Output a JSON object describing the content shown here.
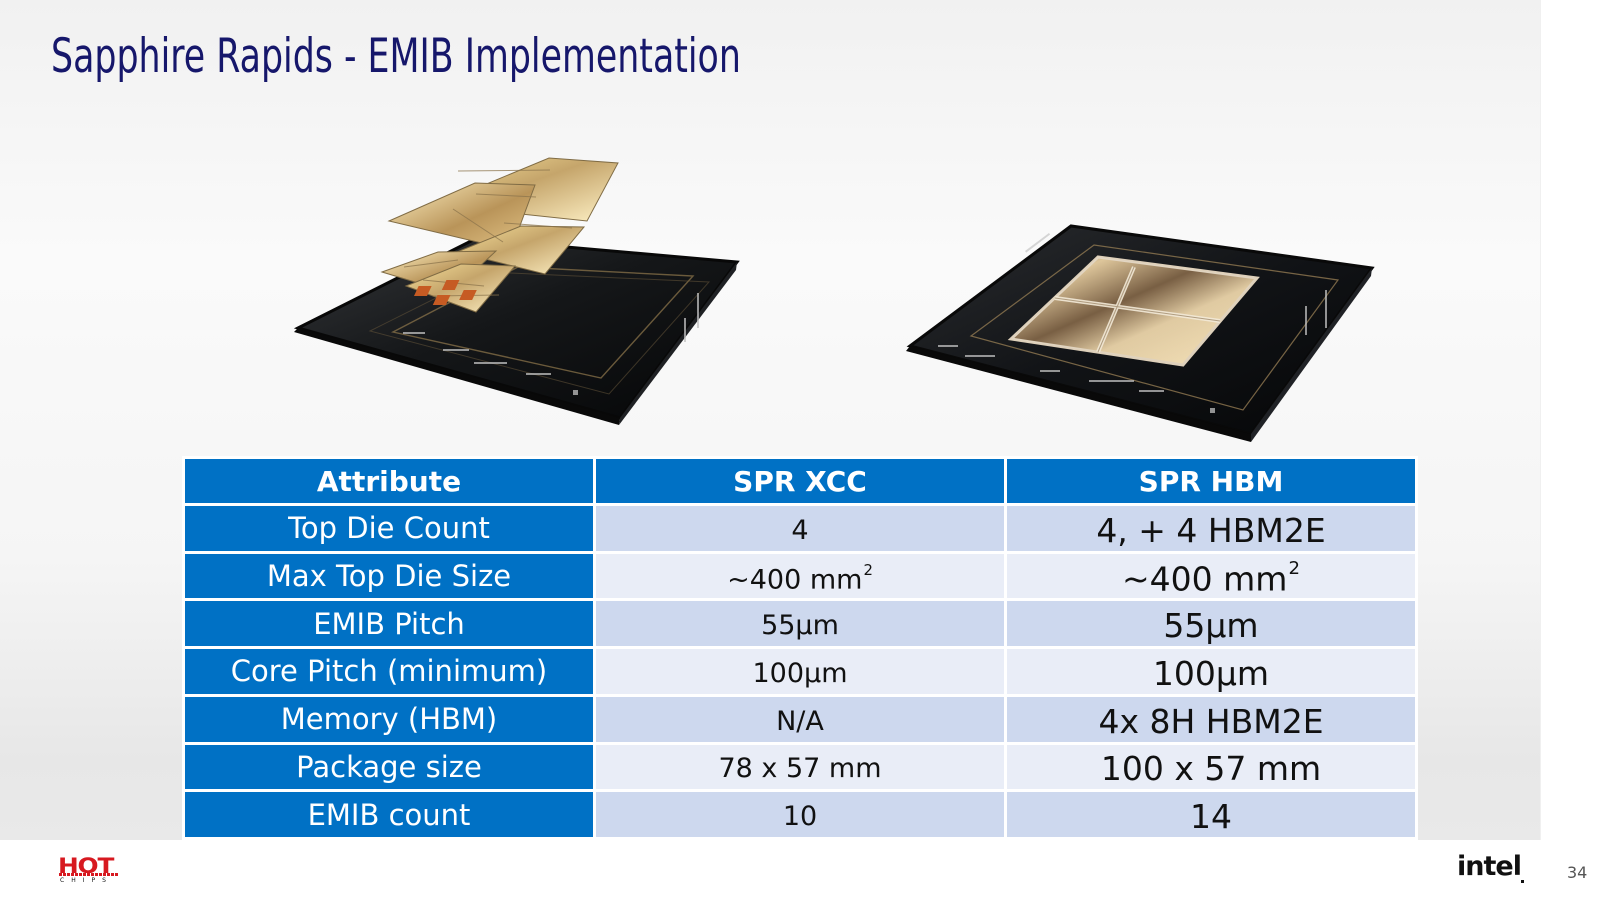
{
  "slide": {
    "title": "Sapphire Rapids - EMIB Implementation",
    "page_number": "34"
  },
  "images": {
    "left": {
      "name": "spr-xcc-package-image"
    },
    "right": {
      "name": "spr-hbm-package-image"
    }
  },
  "table": {
    "headers": [
      "Attribute",
      "SPR XCC",
      "SPR HBM"
    ],
    "rows": [
      {
        "attribute": "Top Die Count",
        "spr_xcc": "4",
        "spr_hbm": "4,  + 4 HBM2E"
      },
      {
        "attribute": "Max Top Die Size",
        "spr_xcc_base": "~400 mm",
        "spr_xcc_superscript": "2",
        "spr_hbm_base": "~400 mm",
        "spr_hbm_superscript": "2"
      },
      {
        "attribute": "EMIB Pitch",
        "spr_xcc": "55µm",
        "spr_hbm": "55µm"
      },
      {
        "attribute": "Core Pitch (minimum)",
        "spr_xcc": "100µm",
        "spr_hbm": "100µm"
      },
      {
        "attribute": "Memory (HBM)",
        "spr_xcc": "N/A",
        "spr_hbm": "4x 8H HBM2E"
      },
      {
        "attribute": "Package size",
        "spr_xcc": "78 x 57 mm",
        "spr_hbm": "100 x 57 mm"
      },
      {
        "attribute": "EMIB count",
        "spr_xcc": "10",
        "spr_hbm": "14"
      }
    ]
  },
  "logos": {
    "hot_chips_top": "HOT",
    "hot_chips_bottom": "CHIPS",
    "intel": "intel"
  },
  "colors": {
    "title": "#16176b",
    "table_header": "#0071c5",
    "table_odd": "#cdd8ee",
    "table_even": "#e9edf7",
    "hot_chips_red": "#d71920"
  }
}
